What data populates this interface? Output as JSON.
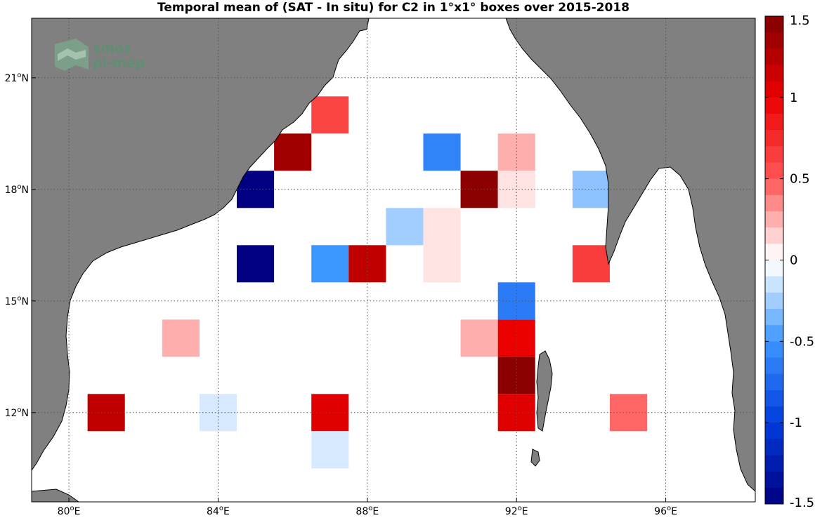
{
  "title": "Temporal mean of (SAT - In situ) for C2 in 1°x1° boxes over 2015-2018",
  "logo": {
    "line1": "smos",
    "line2": "pi-mep"
  },
  "colors": {
    "land": "#808080",
    "ocean": "#ffffff",
    "grid": "#555555"
  },
  "chart_data": {
    "type": "heatmap",
    "title": "Temporal mean of (SAT - In situ) for C2 in 1°x1° boxes over 2015-2018",
    "lon_range": [
      79.0,
      98.4
    ],
    "lat_range": [
      9.6,
      22.6
    ],
    "lon_ticks": [
      {
        "value": 80,
        "label": "80°E"
      },
      {
        "value": 84,
        "label": "84°E"
      },
      {
        "value": 88,
        "label": "88°E"
      },
      {
        "value": 92,
        "label": "92°E"
      },
      {
        "value": 96,
        "label": "96°E"
      }
    ],
    "lat_ticks": [
      {
        "value": 12,
        "label": "12°N"
      },
      {
        "value": 15,
        "label": "15°N"
      },
      {
        "value": 18,
        "label": "18°N"
      },
      {
        "value": 21,
        "label": "21°N"
      }
    ],
    "grid": true,
    "colorbar": {
      "range": [
        -1.5,
        1.5
      ],
      "ticks": [
        {
          "value": 1.5,
          "label": "1.5"
        },
        {
          "value": 1,
          "label": "1"
        },
        {
          "value": 0.5,
          "label": "0.5"
        },
        {
          "value": 0,
          "label": "0"
        },
        {
          "value": -0.5,
          "label": "-0.5"
        },
        {
          "value": -1,
          "label": "-1"
        },
        {
          "value": -1.5,
          "label": "-1.5"
        }
      ],
      "position": "right"
    },
    "cells": [
      {
        "lon": 87,
        "lat": 20,
        "value": 0.6
      },
      {
        "lon": 86,
        "lat": 19,
        "value": 1.35
      },
      {
        "lon": 85,
        "lat": 18,
        "value": -1.5
      },
      {
        "lon": 90,
        "lat": 19,
        "value": -0.6
      },
      {
        "lon": 92,
        "lat": 19,
        "value": 0.25
      },
      {
        "lon": 91,
        "lat": 18,
        "value": 1.45
      },
      {
        "lon": 92,
        "lat": 18,
        "value": 0.1
      },
      {
        "lon": 94,
        "lat": 18,
        "value": -0.3
      },
      {
        "lon": 89,
        "lat": 17,
        "value": -0.25
      },
      {
        "lon": 90,
        "lat": 17,
        "value": 0.1
      },
      {
        "lon": 85,
        "lat": 16,
        "value": -1.5
      },
      {
        "lon": 87,
        "lat": 16,
        "value": -0.5
      },
      {
        "lon": 88,
        "lat": 16,
        "value": 1.2
      },
      {
        "lon": 90,
        "lat": 16,
        "value": 0.1
      },
      {
        "lon": 94,
        "lat": 16,
        "value": 0.65
      },
      {
        "lon": 92,
        "lat": 15,
        "value": -0.65
      },
      {
        "lon": 83,
        "lat": 14,
        "value": 0.25
      },
      {
        "lon": 91,
        "lat": 14,
        "value": 0.25
      },
      {
        "lon": 92,
        "lat": 14,
        "value": 1.0
      },
      {
        "lon": 92,
        "lat": 13,
        "value": 1.45
      },
      {
        "lon": 81,
        "lat": 12,
        "value": 1.2
      },
      {
        "lon": 84,
        "lat": 12,
        "value": -0.12
      },
      {
        "lon": 87,
        "lat": 12,
        "value": 1.05
      },
      {
        "lon": 92,
        "lat": 12,
        "value": 1.05
      },
      {
        "lon": 95,
        "lat": 12,
        "value": 0.45
      },
      {
        "lon": 87,
        "lat": 11,
        "value": -0.12
      }
    ]
  }
}
